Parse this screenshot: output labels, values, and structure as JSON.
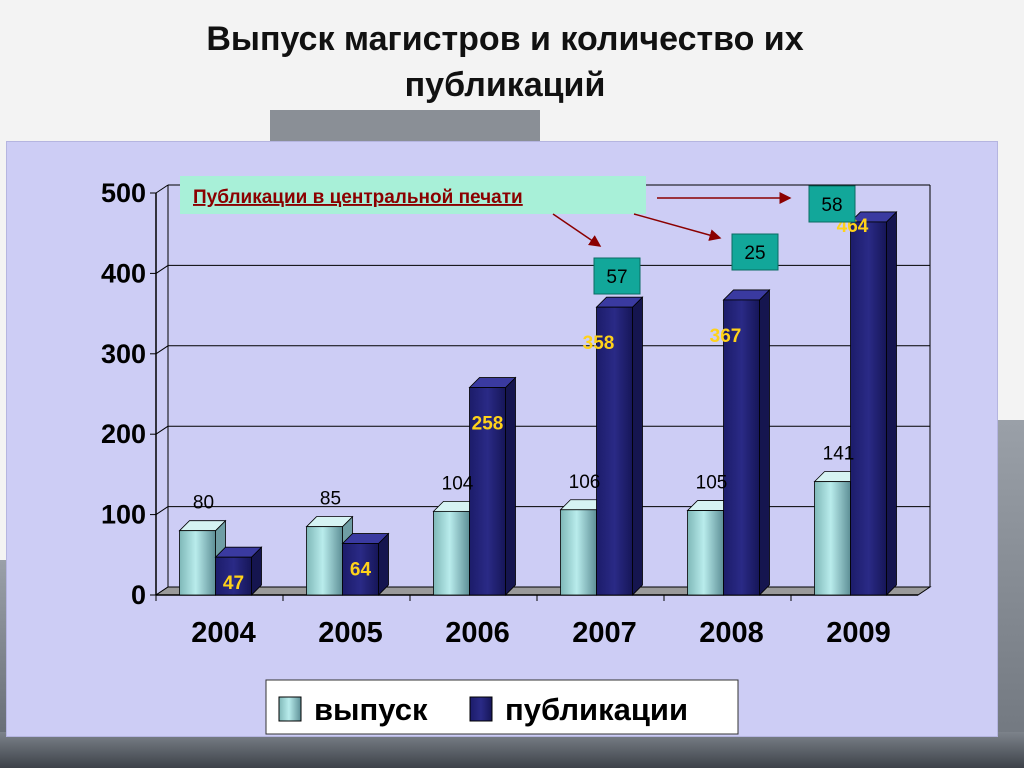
{
  "page": {
    "title_line1": "Выпуск магистров и количество их",
    "title_line2": "публикаций"
  },
  "colors": {
    "panel_bg": "#cdcdf5",
    "vypusk_bar": "#b9ecec",
    "publikacii_bar": "#2a2a86",
    "callout_teal": "#12a79a",
    "annotation_red": "#8b0000",
    "value_label_yellow": "#ffd21a"
  },
  "chart_data": {
    "type": "bar",
    "categories": [
      "2004",
      "2005",
      "2006",
      "2007",
      "2008",
      "2009"
    ],
    "series": [
      {
        "name": "выпуск",
        "values": [
          80,
          85,
          104,
          106,
          105,
          141
        ]
      },
      {
        "name": "публикации",
        "values": [
          47,
          64,
          258,
          358,
          367,
          464
        ]
      }
    ],
    "y_ticks": [
      "0",
      "100",
      "200",
      "300",
      "400",
      "500"
    ],
    "ylim": [
      0,
      500
    ],
    "grid": true,
    "legend_position": "bottom-center",
    "annotation": {
      "label": "Публикации в центральной печати",
      "callouts": [
        {
          "category": "2007",
          "value": "57"
        },
        {
          "category": "2008",
          "value": "25"
        },
        {
          "category": "2009",
          "value": "58"
        }
      ]
    }
  }
}
